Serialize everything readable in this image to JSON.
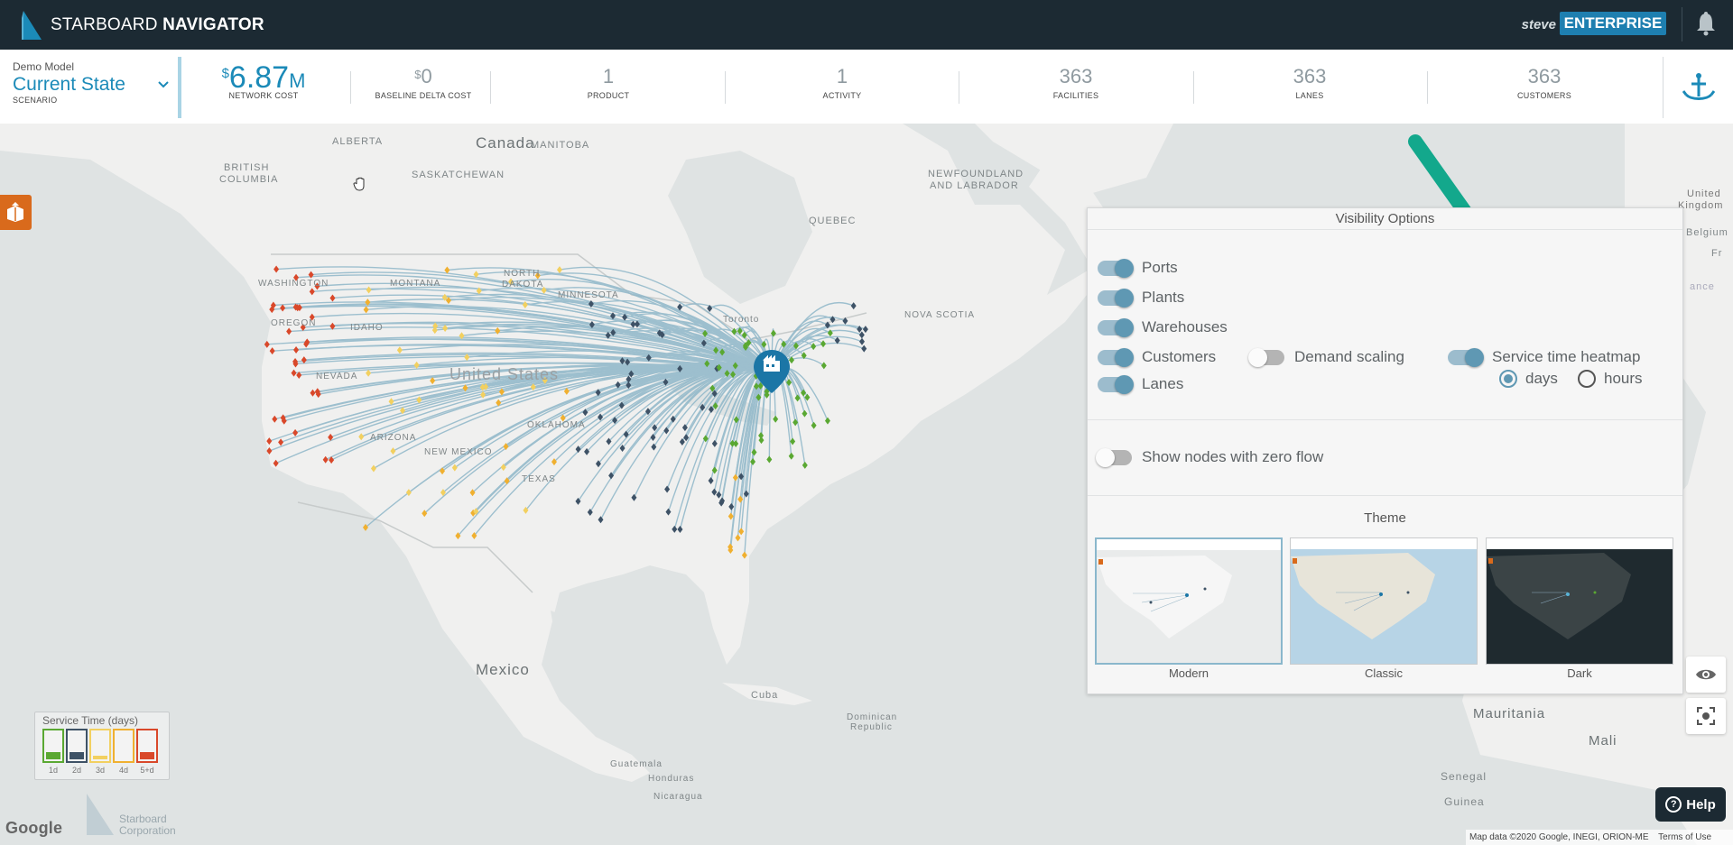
{
  "app": {
    "logo_text_a": "STARBOARD",
    "logo_text_b": "NAVIGATOR",
    "user_name": "steve",
    "plan_badge": "ENTERPRISE"
  },
  "scenario": {
    "model": "Demo Model",
    "name": "Current State",
    "label": "SCENARIO"
  },
  "stats": [
    {
      "currency": "$",
      "value": "6.87",
      "unit": "M",
      "label": "NETWORK COST"
    },
    {
      "currency": "$",
      "value": "0",
      "unit": "",
      "label": "BASELINE DELTA COST"
    },
    {
      "currency": "",
      "value": "1",
      "unit": "",
      "label": "PRODUCT"
    },
    {
      "currency": "",
      "value": "1",
      "unit": "",
      "label": "ACTIVITY"
    },
    {
      "currency": "",
      "value": "363",
      "unit": "",
      "label": "FACILITIES"
    },
    {
      "currency": "",
      "value": "363",
      "unit": "",
      "label": "LANES"
    },
    {
      "currency": "",
      "value": "363",
      "unit": "",
      "label": "CUSTOMERS"
    }
  ],
  "map_labels": {
    "canada": "Canada",
    "alberta": "ALBERTA",
    "british_columbia_1": "BRITISH",
    "british_columbia_2": "COLUMBIA",
    "manitoba": "MANITOBA",
    "saskatchewan": "SASKATCHEWAN",
    "quebec": "QUEBEC",
    "newfoundland_1": "NEWFOUNDLAND",
    "newfoundland_2": "AND LABRADOR",
    "united_kingdom_1": "United",
    "united_kingdom_2": "Kingdom",
    "belgium": "Belgium",
    "france": "Fr",
    "mexico": "Mexico",
    "cuba": "Cuba",
    "dominican_1": "Dominican",
    "dominican_2": "Republic",
    "guatemala": "Guatemala",
    "honduras": "Honduras",
    "nicaragua": "Nicaragua",
    "mauritania": "Mauritania",
    "mali": "Mali",
    "senegal": "Senegal",
    "guinea": "Guinea",
    "ocean": "ance",
    "toronto": "Toronto",
    "montana": "MONTANA",
    "north_dakota_1": "NORTH",
    "north_dakota_2": "DAKOTA",
    "minnesota": "MINNESOTA",
    "washington": "WASHINGTON",
    "oregon": "OREGON",
    "idaho": "IDAHO",
    "nevada": "NEVADA",
    "arizona": "ARIZONA",
    "new_mexico": "NEW MEXICO",
    "texas": "TEXAS",
    "oklahoma": "OKLAHOMA",
    "united_states": "United States",
    "nova_scotia": "NOVA SCOTIA"
  },
  "visibility": {
    "title": "Visibility Options",
    "toggles": [
      {
        "label": "Ports",
        "on": true
      },
      {
        "label": "Plants",
        "on": true
      },
      {
        "label": "Warehouses",
        "on": true
      },
      {
        "label": "Customers",
        "on": true
      },
      {
        "label": "Lanes",
        "on": true
      },
      {
        "label": "Demand scaling",
        "on": false
      },
      {
        "label": "Service time heatmap",
        "on": true
      },
      {
        "label": "Show nodes with zero flow",
        "on": false
      }
    ],
    "units": [
      {
        "label": "days",
        "selected": true
      },
      {
        "label": "hours",
        "selected": false
      }
    ],
    "theme_title": "Theme",
    "themes": [
      {
        "label": "Modern",
        "selected": true
      },
      {
        "label": "Classic",
        "selected": false
      },
      {
        "label": "Dark",
        "selected": false
      }
    ]
  },
  "legend": {
    "title": "Service Time (days)",
    "items": [
      {
        "label": "1d",
        "color": "#5aa832"
      },
      {
        "label": "2d",
        "color": "#3e5266"
      },
      {
        "label": "3d",
        "color": "#f2d060"
      },
      {
        "label": "4d",
        "color": "#f0b030"
      },
      {
        "label": "5+d",
        "color": "#d9482a"
      }
    ]
  },
  "footer": {
    "google": "Google",
    "watermark_1": "Starboard",
    "watermark_2": "Corporation",
    "help": "Help",
    "map_data": "Map data ©2020 Google, INEGI, ORION-ME",
    "terms": "Terms of Use"
  },
  "colors": {
    "topbar": "#1c2a33",
    "accent": "#1b8ab8",
    "toggle_on": "#5f98b3",
    "arrow": "#13a88c"
  }
}
